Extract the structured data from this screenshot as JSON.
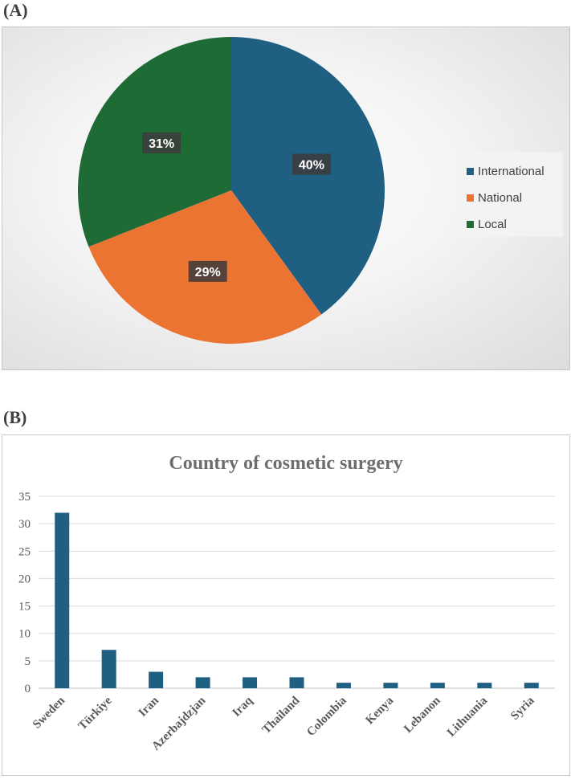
{
  "panel_a": {
    "label": "(A)"
  },
  "panel_b": {
    "label": "(B)"
  },
  "chart_data": [
    {
      "type": "pie",
      "title": "",
      "categories": [
        "International",
        "National",
        "Local"
      ],
      "values": [
        40,
        29,
        31
      ],
      "value_labels": [
        "40%",
        "29%",
        "31%"
      ],
      "colors": [
        "#1f5f82",
        "#ec7433",
        "#1f6b36"
      ],
      "legend_position": "right"
    },
    {
      "type": "bar",
      "title": "Country of cosmetic surgery",
      "categories": [
        "Sweden",
        "Türkiye",
        "Iran",
        "Azerbajdzjan",
        "Iraq",
        "Thailand",
        "Colombia",
        "Kenya",
        "Lebanon",
        "Lithuania",
        "Syria"
      ],
      "values": [
        32,
        7,
        3,
        2,
        2,
        2,
        1,
        1,
        1,
        1,
        1
      ],
      "ylim": [
        0,
        35
      ],
      "yticks": [
        "0",
        "5",
        "10",
        "15",
        "20",
        "25",
        "30",
        "35"
      ],
      "xlabel": "",
      "ylabel": "",
      "grid": true,
      "colors": {
        "bar": "#1f5f82"
      }
    }
  ]
}
